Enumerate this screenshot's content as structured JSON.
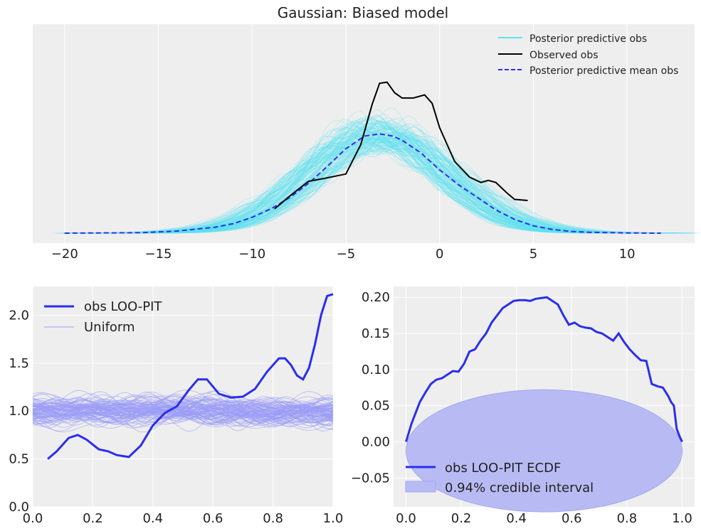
{
  "colors": {
    "background": "#eeeeee",
    "grid": "#ffffff",
    "predictive": "#5de3ef",
    "observed": "#000000",
    "mean": "#2a2eec",
    "uniform": "#9b9df5",
    "band": "#b8bbf3",
    "band_edge": "#a4a7f0"
  },
  "chart_data": [
    {
      "type": "line",
      "title": "Gaussian: Biased model",
      "xlim": [
        -21.7,
        13.6
      ],
      "xticks": [
        -20,
        -15,
        -10,
        -5,
        0,
        5,
        10
      ],
      "yticks": [],
      "grid": true,
      "legend_position": "top-right",
      "series": [
        {
          "name": "Posterior predictive obs",
          "style": "many faint cyan curves (ensemble)",
          "center": -3.2,
          "sd": 3.6,
          "draws": 150
        },
        {
          "name": "Observed obs",
          "style": "solid black",
          "x": [
            -8.8,
            -8.0,
            -7.0,
            -6.0,
            -5.0,
            -4.2,
            -3.6,
            -3.2,
            -2.8,
            -2.4,
            -2.0,
            -1.4,
            -0.8,
            -0.4,
            0.0,
            0.8,
            1.6,
            2.2,
            2.6,
            3.0,
            3.6,
            4.0,
            4.7
          ],
          "y": [
            0.115,
            0.175,
            0.245,
            0.262,
            0.28,
            0.42,
            0.61,
            0.71,
            0.715,
            0.665,
            0.64,
            0.64,
            0.655,
            0.615,
            0.5,
            0.34,
            0.265,
            0.24,
            0.25,
            0.24,
            0.19,
            0.16,
            0.155
          ]
        },
        {
          "name": "Posterior predictive mean obs",
          "style": "dashed blue",
          "x": [
            -20,
            -16,
            -14,
            -12,
            -11,
            -10,
            -9,
            -8,
            -7,
            -6,
            -5,
            -4,
            -3.2,
            -2.5,
            -2,
            -1,
            0,
            1,
            2,
            3,
            4,
            5,
            6,
            7,
            8,
            10,
            11.8
          ],
          "y": [
            0.0,
            0.002,
            0.01,
            0.028,
            0.045,
            0.075,
            0.115,
            0.168,
            0.235,
            0.315,
            0.4,
            0.46,
            0.47,
            0.46,
            0.44,
            0.38,
            0.3,
            0.23,
            0.17,
            0.11,
            0.065,
            0.035,
            0.018,
            0.008,
            0.004,
            0.001,
            0.0
          ]
        }
      ]
    },
    {
      "type": "line",
      "xlim": [
        0.0,
        1.0
      ],
      "ylim": [
        0.0,
        2.3
      ],
      "xticks": [
        0.0,
        0.2,
        0.4,
        0.6,
        0.8,
        1.0
      ],
      "yticks": [
        0.0,
        0.5,
        1.0,
        1.5,
        2.0
      ],
      "grid": true,
      "legend_position": "top-left",
      "series": [
        {
          "name": "obs LOO-PIT",
          "style": "solid blue",
          "x": [
            0.05,
            0.08,
            0.12,
            0.15,
            0.18,
            0.22,
            0.25,
            0.28,
            0.32,
            0.36,
            0.4,
            0.44,
            0.48,
            0.52,
            0.55,
            0.58,
            0.62,
            0.66,
            0.7,
            0.74,
            0.78,
            0.82,
            0.84,
            0.86,
            0.88,
            0.9,
            0.92,
            0.94,
            0.96,
            0.98,
            1.0
          ],
          "y": [
            0.5,
            0.58,
            0.72,
            0.75,
            0.7,
            0.6,
            0.58,
            0.54,
            0.52,
            0.64,
            0.85,
            0.98,
            1.05,
            1.22,
            1.33,
            1.33,
            1.18,
            1.14,
            1.15,
            1.23,
            1.41,
            1.55,
            1.55,
            1.48,
            1.37,
            1.33,
            1.45,
            1.7,
            2.0,
            2.2,
            2.22
          ]
        },
        {
          "name": "Uniform",
          "style": "many faint blue curves",
          "center": 1.0,
          "spread": 0.22,
          "draws": 100
        }
      ]
    },
    {
      "type": "line",
      "xlim": [
        -0.045,
        1.045
      ],
      "ylim": [
        -0.09,
        0.215
      ],
      "xticks": [
        0.0,
        0.2,
        0.4,
        0.6,
        0.8,
        1.0
      ],
      "yticks": [
        -0.05,
        0.0,
        0.05,
        0.1,
        0.15,
        0.2
      ],
      "grid": true,
      "legend_position": "bottom-left",
      "series": [
        {
          "name": "obs LOO-PIT ECDF",
          "style": "solid blue",
          "x": [
            0.0,
            0.02,
            0.05,
            0.07,
            0.09,
            0.11,
            0.13,
            0.15,
            0.17,
            0.19,
            0.21,
            0.23,
            0.25,
            0.27,
            0.29,
            0.31,
            0.33,
            0.35,
            0.37,
            0.39,
            0.41,
            0.43,
            0.45,
            0.47,
            0.49,
            0.51,
            0.53,
            0.55,
            0.57,
            0.59,
            0.61,
            0.63,
            0.65,
            0.67,
            0.69,
            0.71,
            0.73,
            0.75,
            0.77,
            0.79,
            0.81,
            0.83,
            0.85,
            0.87,
            0.89,
            0.91,
            0.93,
            0.95,
            0.96,
            0.97,
            0.98,
            0.99,
            1.0
          ],
          "y": [
            0.0,
            0.025,
            0.055,
            0.068,
            0.08,
            0.086,
            0.088,
            0.093,
            0.098,
            0.097,
            0.108,
            0.125,
            0.128,
            0.14,
            0.15,
            0.165,
            0.175,
            0.185,
            0.19,
            0.195,
            0.196,
            0.196,
            0.195,
            0.198,
            0.199,
            0.2,
            0.195,
            0.19,
            0.175,
            0.162,
            0.165,
            0.16,
            0.158,
            0.157,
            0.152,
            0.15,
            0.145,
            0.14,
            0.15,
            0.138,
            0.128,
            0.12,
            0.113,
            0.112,
            0.08,
            0.077,
            0.075,
            0.063,
            0.055,
            0.05,
            0.018,
            0.008,
            0.0
          ]
        },
        {
          "name": "0.94% credible interval",
          "style": "filled band",
          "center_x": 0.5,
          "center_y": -0.0125,
          "half_height": 0.0845
        }
      ]
    }
  ]
}
